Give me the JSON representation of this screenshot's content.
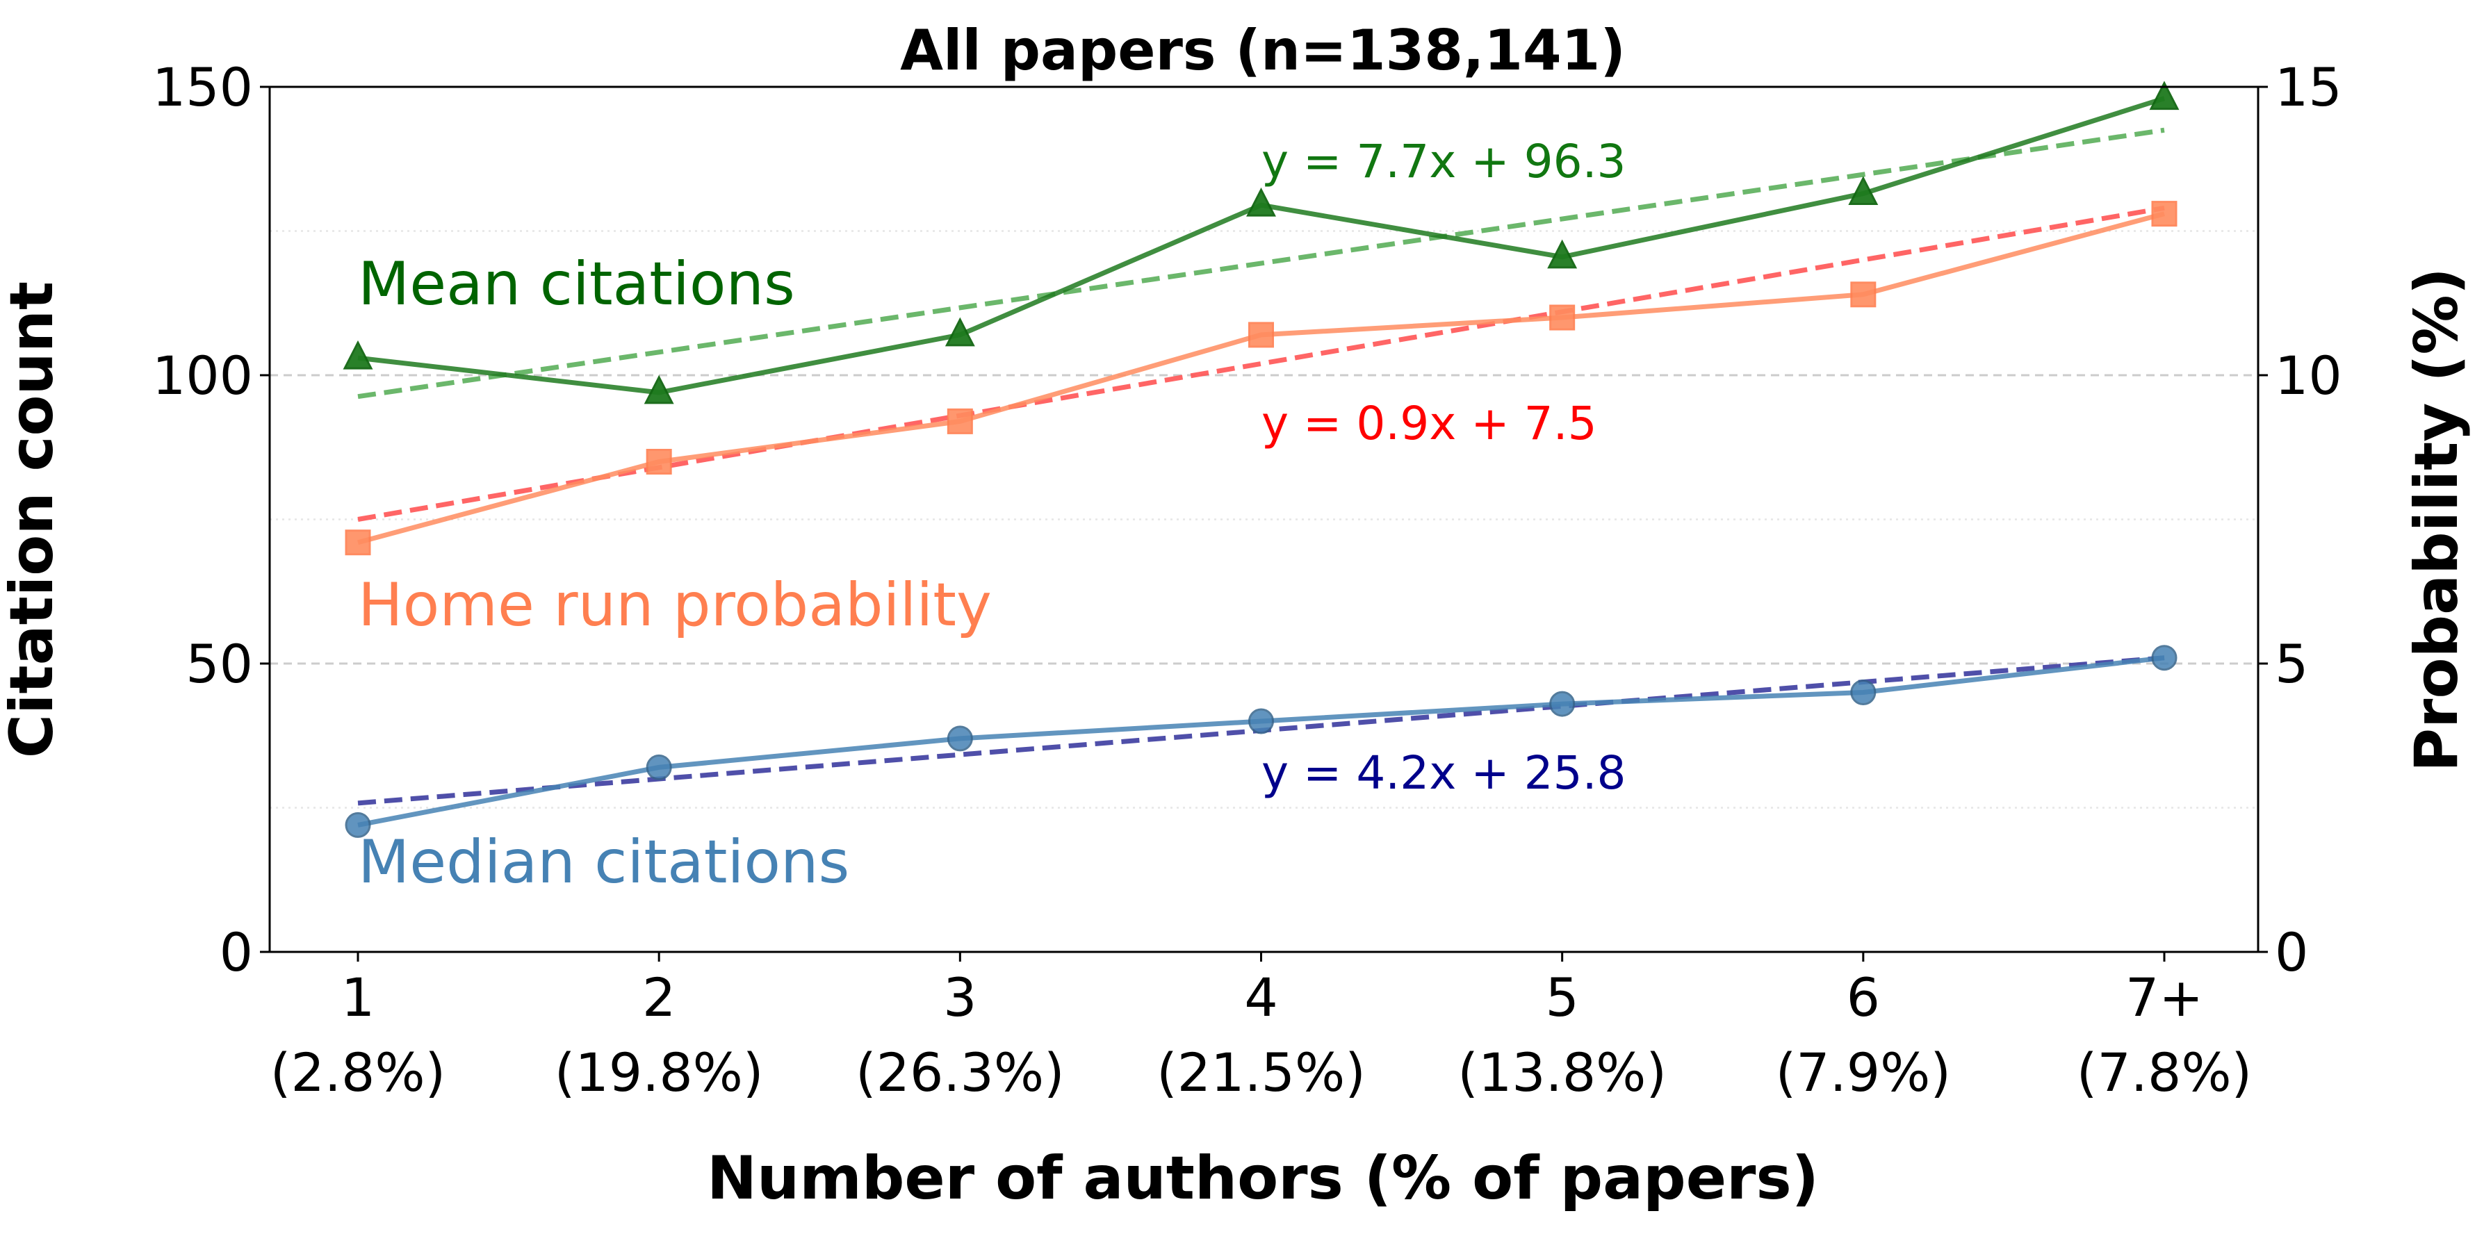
{
  "chart_data": {
    "type": "line",
    "title": "All papers (n=138,141)",
    "xlabel": "Number of authors (% of papers)",
    "ylabel": "Citation count",
    "ylabel_right": "Probability (%)",
    "categories": [
      "1",
      "2",
      "3",
      "4",
      "5",
      "6",
      "7+"
    ],
    "category_shares": [
      "(2.8%)",
      "(19.8%)",
      "(26.3%)",
      "(21.5%)",
      "(13.8%)",
      "(7.9%)",
      "(7.8%)"
    ],
    "ylim": [
      0,
      150
    ],
    "ylim_right": [
      0,
      15
    ],
    "yticks": [
      "0",
      "50",
      "100",
      "150"
    ],
    "yticks_right": [
      "0",
      "5",
      "10",
      "15"
    ],
    "grid": "horizontal",
    "series": [
      {
        "name": "Mean citations",
        "axis": "left",
        "marker": "triangle",
        "color": "#1e7a1e",
        "values": [
          103,
          97,
          107,
          129.5,
          120.5,
          131.5,
          148
        ],
        "fit": {
          "label": "y = 7.7x + 96.3",
          "slope": 7.7,
          "intercept": 96.3,
          "color": "#5cb05c",
          "label_color": "#117711"
        }
      },
      {
        "name": "Home run probability",
        "axis": "right",
        "marker": "square",
        "color": "#ff8c5f",
        "values": [
          7.1,
          8.5,
          9.2,
          10.7,
          11.0,
          11.4,
          12.8
        ],
        "fit": {
          "label": "y = 0.9x + 7.5",
          "slope": 0.9,
          "intercept": 7.5,
          "color": "#ff5555",
          "label_color": "#ff0000"
        }
      },
      {
        "name": "Median citations",
        "axis": "left",
        "marker": "circle",
        "color": "#4682b4",
        "values": [
          22,
          32,
          37,
          40,
          43,
          45,
          51
        ],
        "fit": {
          "label": "y = 4.2x + 25.8",
          "slope": 4.2,
          "intercept": 25.8,
          "color": "#3d3da0",
          "label_color": "#00008b"
        }
      }
    ]
  }
}
